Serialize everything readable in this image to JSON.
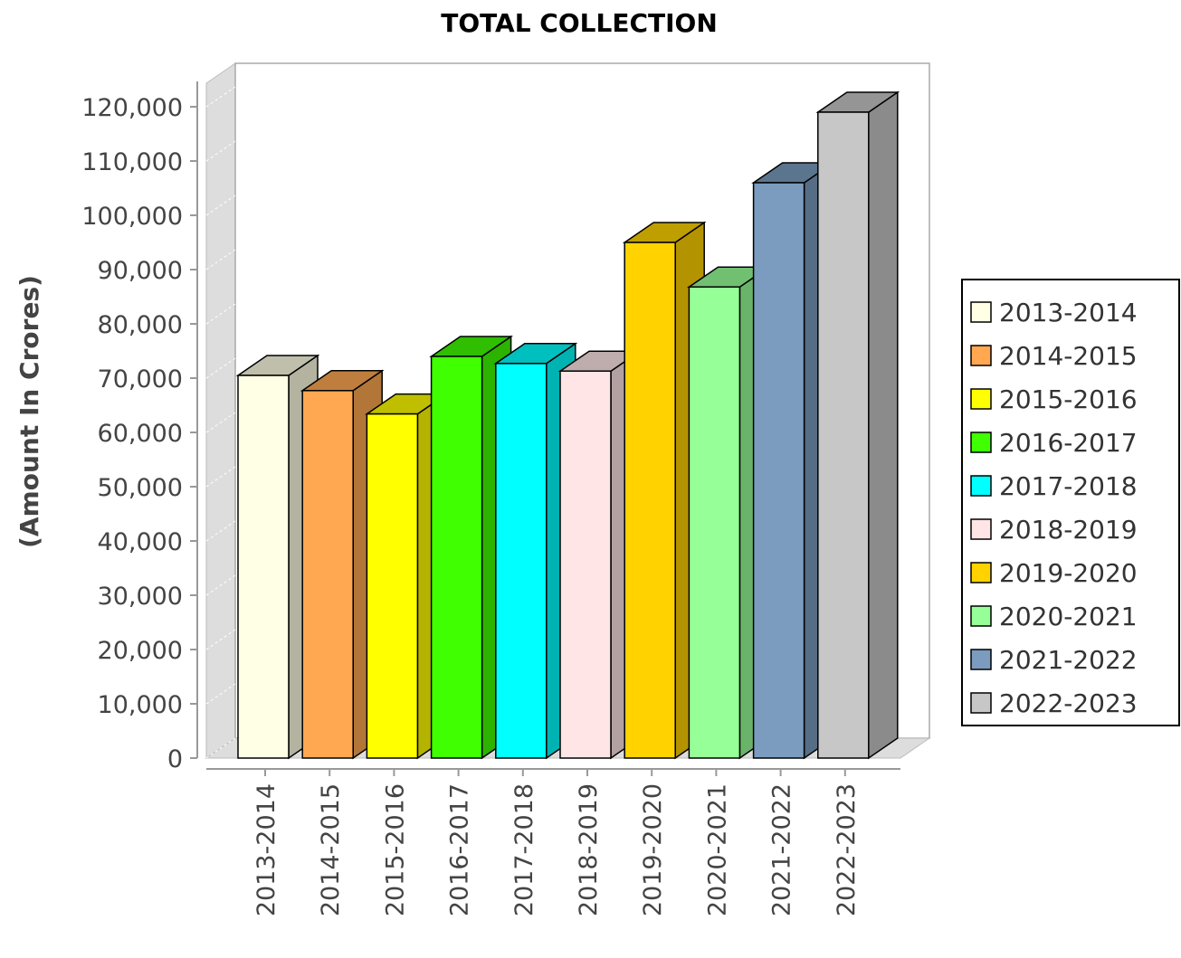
{
  "chart_data": {
    "type": "bar",
    "title": "TOTAL COLLECTION",
    "ylabel": "(Amount In Crores)",
    "xlabel": "",
    "categories": [
      "2013-2014",
      "2014-2015",
      "2015-2016",
      "2016-2017",
      "2017-2018",
      "2018-2019",
      "2019-2020",
      "2020-2021",
      "2021-2022",
      "2022-2023"
    ],
    "values": [
      70500,
      67700,
      63400,
      74000,
      72700,
      71300,
      95000,
      86800,
      106000,
      119000
    ],
    "ylim": [
      0,
      120000
    ],
    "yticks": [
      0,
      10000,
      20000,
      30000,
      40000,
      50000,
      60000,
      70000,
      80000,
      90000,
      100000,
      110000,
      120000
    ],
    "ytick_labels": [
      "0",
      "10,000",
      "20,000",
      "30,000",
      "40,000",
      "50,000",
      "60,000",
      "70,000",
      "80,000",
      "90,000",
      "100,000",
      "110,000",
      "120,000"
    ],
    "legend": {
      "position": "right",
      "entries": [
        "2013-2014",
        "2014-2015",
        "2015-2016",
        "2016-2017",
        "2017-2018",
        "2018-2019",
        "2019-2020",
        "2020-2021",
        "2021-2022",
        "2022-2023"
      ]
    },
    "colors": [
      "#ffffe5",
      "#ffa851",
      "#ffff00",
      "#3fff00",
      "#00ffff",
      "#ffe5e5",
      "#ffd200",
      "#97ff97",
      "#7b9cbf",
      "#c7c7c7"
    ],
    "grid": true,
    "style": "3d"
  }
}
